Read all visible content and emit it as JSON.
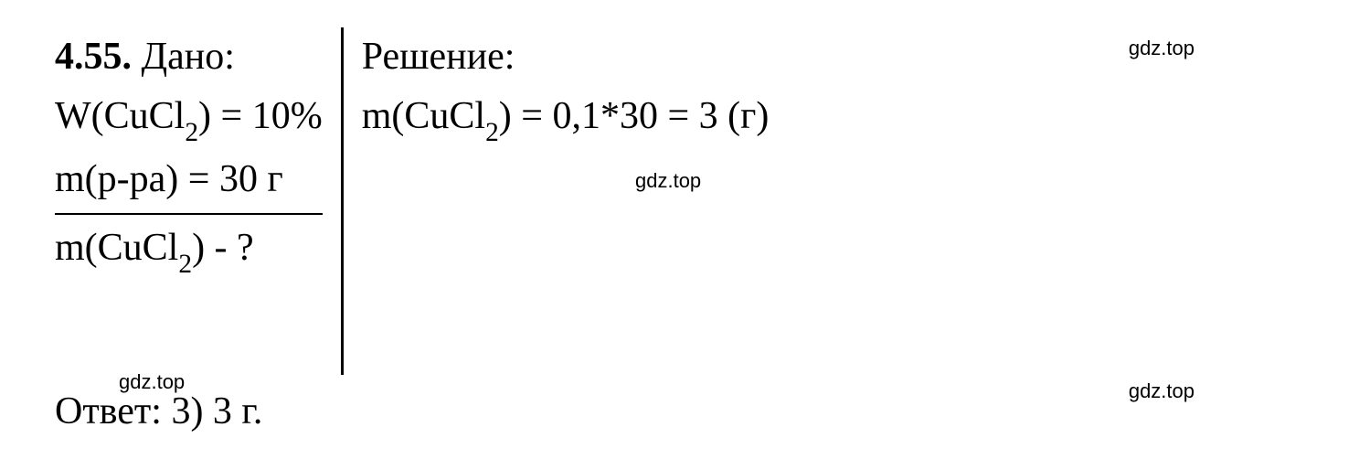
{
  "problem": {
    "number": "4.55.",
    "dano_label": "Дано:",
    "line1_prefix": "W(CuCl",
    "line1_sub": "2",
    "line1_suffix": ") = 10%",
    "line2_text": "m(р-ра) = 30 г",
    "line3_prefix": "m(CuCl",
    "line3_sub": "2",
    "line3_suffix": ") - ?"
  },
  "solution": {
    "label": "Решение:",
    "line1_prefix": "m(CuCl",
    "line1_sub": "2",
    "line1_suffix": ") = 0,1*30 = 3 (г)"
  },
  "answer": {
    "label": "Ответ:",
    "text": "3) 3 г."
  },
  "watermark": "gdz.top",
  "styling": {
    "font_family": "Times New Roman",
    "font_size_main": 42,
    "font_size_watermark": 22,
    "text_color": "#000000",
    "background_color": "#ffffff",
    "divider_color": "#000000",
    "divider_width": 3
  }
}
